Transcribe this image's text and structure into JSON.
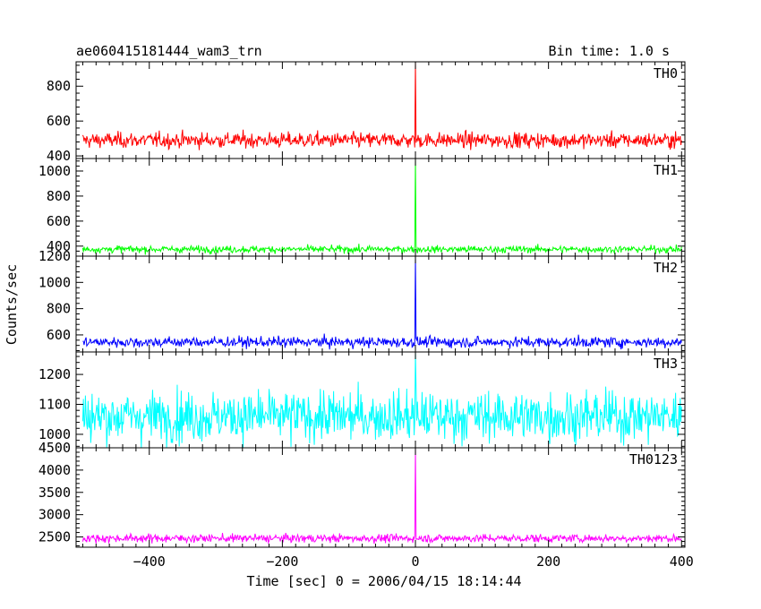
{
  "header": {
    "title": "ae060415181444_wam3_trn",
    "bin_time": "Bin time: 1.0 s"
  },
  "chart_data": {
    "type": "line",
    "xlabel": "Time [sec] 0 = 2006/04/15 18:14:44",
    "ylabel": "Counts/sec",
    "xlim": [
      -510,
      405
    ],
    "x_ticks": [
      -400,
      -200,
      0,
      200,
      400
    ],
    "x_tick_labels": [
      "−400",
      "−200",
      "0",
      "200",
      "400"
    ],
    "x_range": [
      -500,
      400
    ],
    "bin_time_s": 1.0,
    "panels": [
      {
        "name": "TH0",
        "color": "#ff0000",
        "ylim": [
          385,
          940
        ],
        "y_ticks": [
          400,
          600,
          800
        ],
        "baseline_mean": 490,
        "noise_sd": 22,
        "peak": {
          "x": 0,
          "y": 940
        }
      },
      {
        "name": "TH1",
        "color": "#00ff00",
        "ylim": [
          320,
          1100
        ],
        "y_ticks": [
          400,
          600,
          800,
          1000
        ],
        "baseline_mean": 375,
        "noise_sd": 14,
        "peak": {
          "x": 0,
          "y": 1100
        }
      },
      {
        "name": "TH2",
        "color": "#0000ff",
        "ylim": [
          470,
          1200
        ],
        "y_ticks": [
          600,
          800,
          1000,
          1200
        ],
        "baseline_mean": 545,
        "noise_sd": 20,
        "peak": {
          "x": 0,
          "y": 1200
        }
      },
      {
        "name": "TH3",
        "color": "#00ffff",
        "ylim": [
          955,
          1275
        ],
        "y_ticks": [
          1000,
          1100,
          1200
        ],
        "baseline_mean": 1060,
        "noise_sd": 42,
        "peak": {
          "x": 0,
          "y": 1275
        }
      },
      {
        "name": "TH0123",
        "color": "#ff00ff",
        "ylim": [
          2270,
          4500
        ],
        "y_ticks": [
          2500,
          3000,
          3500,
          4000,
          4500
        ],
        "baseline_mean": 2470,
        "noise_sd": 45,
        "peak": {
          "x": 0,
          "y": 4500
        }
      }
    ]
  }
}
